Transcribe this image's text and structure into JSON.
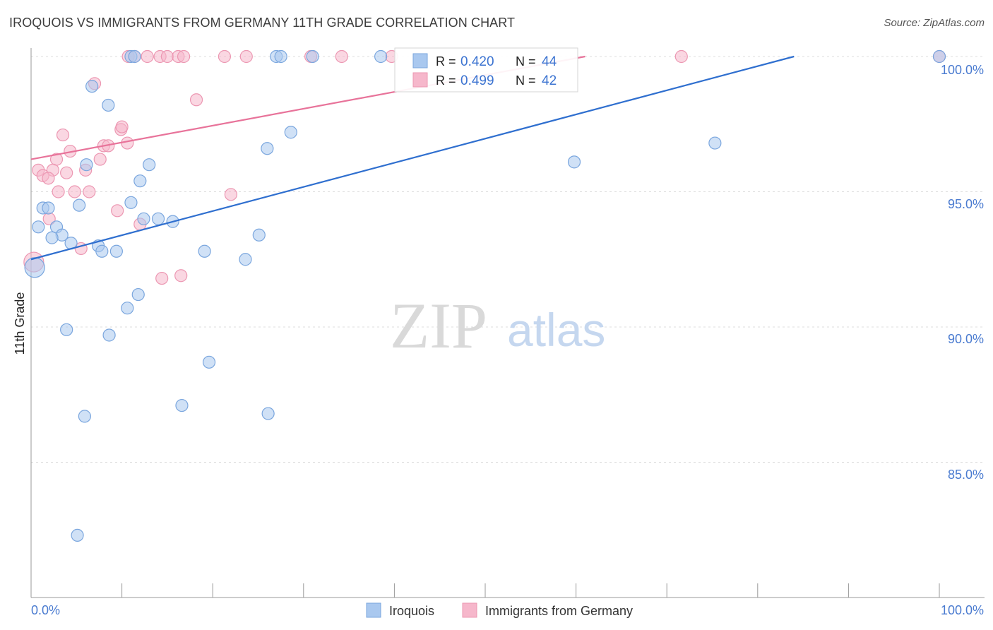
{
  "chart_data": {
    "type": "scatter",
    "title": "IROQUOIS VS IMMIGRANTS FROM GERMANY 11TH GRADE CORRELATION CHART",
    "source": "Source: ZipAtlas.com",
    "xlabel": "",
    "ylabel": "11th Grade",
    "xlim": [
      0,
      100
    ],
    "ylim": [
      80.5,
      100.7
    ],
    "y_ticks": [
      85,
      90,
      95,
      100
    ],
    "y_tick_labels": [
      "85.0%",
      "90.0%",
      "95.0%",
      "100.0%"
    ],
    "x_tick_labels": [
      "0.0%",
      "100.0%"
    ],
    "watermark": {
      "zip": "ZIP",
      "atlas": "atlas"
    },
    "legend": {
      "r_label": "R =",
      "n_label": "N =",
      "entries": [
        {
          "r": "0.420",
          "n": "44"
        },
        {
          "r": "0.499",
          "n": "42"
        }
      ]
    },
    "colors": {
      "iroquois_fill": "#a9c8ef",
      "iroquois_stroke": "#7aa6de",
      "iroquois_line": "#2f6fcf",
      "germany_fill": "#f6b7cb",
      "germany_stroke": "#ec97b2",
      "germany_line": "#e8739a",
      "tick_text": "#4a7bd0"
    },
    "series": [
      {
        "name": "Iroquois",
        "trend": {
          "x0": 0,
          "y0": 92.5,
          "x1": 84,
          "y1": 100
        },
        "points": [
          {
            "x": 11.0,
            "y": 100.0
          },
          {
            "x": 11.4,
            "y": 100.0
          },
          {
            "x": 27.0,
            "y": 100.0
          },
          {
            "x": 27.5,
            "y": 100.0
          },
          {
            "x": 31.0,
            "y": 100.0
          },
          {
            "x": 38.5,
            "y": 100.0
          },
          {
            "x": 100.0,
            "y": 100.0
          },
          {
            "x": 6.7,
            "y": 98.9
          },
          {
            "x": 8.5,
            "y": 98.2
          },
          {
            "x": 28.6,
            "y": 97.2
          },
          {
            "x": 59.8,
            "y": 96.1
          },
          {
            "x": 75.3,
            "y": 96.8
          },
          {
            "x": 26.0,
            "y": 96.6
          },
          {
            "x": 13.0,
            "y": 96.0
          },
          {
            "x": 6.1,
            "y": 96.0
          },
          {
            "x": 12.0,
            "y": 95.4
          },
          {
            "x": 11.0,
            "y": 94.6
          },
          {
            "x": 5.3,
            "y": 94.5
          },
          {
            "x": 1.3,
            "y": 94.4
          },
          {
            "x": 1.9,
            "y": 94.4
          },
          {
            "x": 12.4,
            "y": 94.0
          },
          {
            "x": 14.0,
            "y": 94.0
          },
          {
            "x": 15.6,
            "y": 93.9
          },
          {
            "x": 0.8,
            "y": 93.7
          },
          {
            "x": 2.8,
            "y": 93.7
          },
          {
            "x": 3.4,
            "y": 93.4
          },
          {
            "x": 2.3,
            "y": 93.3
          },
          {
            "x": 25.1,
            "y": 93.4
          },
          {
            "x": 4.4,
            "y": 93.1
          },
          {
            "x": 7.4,
            "y": 93.0
          },
          {
            "x": 7.8,
            "y": 92.8
          },
          {
            "x": 9.4,
            "y": 92.8
          },
          {
            "x": 19.1,
            "y": 92.8
          },
          {
            "x": 23.6,
            "y": 92.5
          },
          {
            "x": 0.4,
            "y": 92.2
          },
          {
            "x": 11.8,
            "y": 91.2
          },
          {
            "x": 10.6,
            "y": 90.7
          },
          {
            "x": 3.9,
            "y": 89.9
          },
          {
            "x": 8.6,
            "y": 89.7
          },
          {
            "x": 19.6,
            "y": 88.7
          },
          {
            "x": 16.6,
            "y": 87.1
          },
          {
            "x": 5.9,
            "y": 86.7
          },
          {
            "x": 26.1,
            "y": 86.8
          },
          {
            "x": 5.1,
            "y": 82.3
          }
        ]
      },
      {
        "name": "Immigrants from Germany",
        "trend": {
          "x0": 0,
          "y0": 96.2,
          "x1": 61,
          "y1": 100
        },
        "points": [
          {
            "x": 10.7,
            "y": 100.0
          },
          {
            "x": 11.4,
            "y": 100.0
          },
          {
            "x": 12.8,
            "y": 100.0
          },
          {
            "x": 14.2,
            "y": 100.0
          },
          {
            "x": 15.0,
            "y": 100.0
          },
          {
            "x": 16.2,
            "y": 100.0
          },
          {
            "x": 16.8,
            "y": 100.0
          },
          {
            "x": 21.3,
            "y": 100.0
          },
          {
            "x": 23.7,
            "y": 100.0
          },
          {
            "x": 30.8,
            "y": 100.0
          },
          {
            "x": 34.2,
            "y": 100.0
          },
          {
            "x": 39.7,
            "y": 100.0
          },
          {
            "x": 71.6,
            "y": 100.0
          },
          {
            "x": 100.0,
            "y": 100.0
          },
          {
            "x": 7.0,
            "y": 99.0
          },
          {
            "x": 18.2,
            "y": 98.4
          },
          {
            "x": 9.9,
            "y": 97.3
          },
          {
            "x": 10.0,
            "y": 97.4
          },
          {
            "x": 3.5,
            "y": 97.1
          },
          {
            "x": 8.0,
            "y": 96.7
          },
          {
            "x": 8.5,
            "y": 96.7
          },
          {
            "x": 10.6,
            "y": 96.8
          },
          {
            "x": 4.3,
            "y": 96.5
          },
          {
            "x": 7.6,
            "y": 96.2
          },
          {
            "x": 2.8,
            "y": 96.2
          },
          {
            "x": 0.8,
            "y": 95.8
          },
          {
            "x": 2.4,
            "y": 95.8
          },
          {
            "x": 6.0,
            "y": 95.8
          },
          {
            "x": 3.9,
            "y": 95.7
          },
          {
            "x": 1.3,
            "y": 95.6
          },
          {
            "x": 1.9,
            "y": 95.5
          },
          {
            "x": 4.8,
            "y": 95.0
          },
          {
            "x": 6.4,
            "y": 95.0
          },
          {
            "x": 22.0,
            "y": 94.9
          },
          {
            "x": 9.5,
            "y": 94.3
          },
          {
            "x": 12.0,
            "y": 93.8
          },
          {
            "x": 5.5,
            "y": 92.9
          },
          {
            "x": 0.3,
            "y": 92.4
          },
          {
            "x": 16.5,
            "y": 91.9
          },
          {
            "x": 14.4,
            "y": 91.8
          },
          {
            "x": 3.0,
            "y": 95.0
          },
          {
            "x": 2.0,
            "y": 94.0
          }
        ]
      }
    ]
  }
}
